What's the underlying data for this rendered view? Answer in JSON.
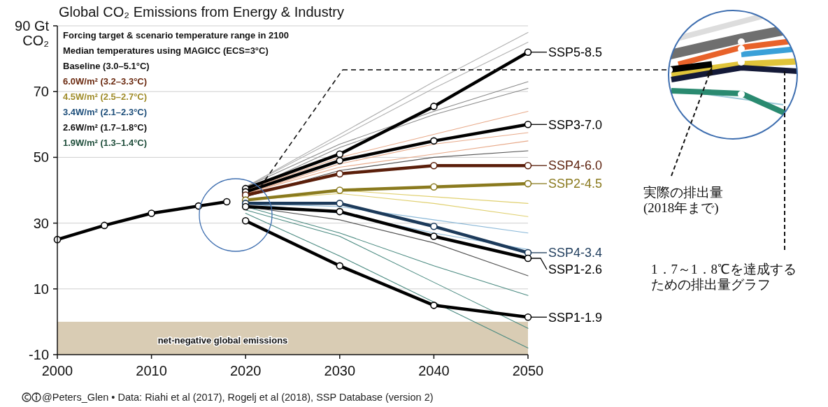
{
  "chart_data": {
    "type": "line",
    "title": "Global CO₂ Emissions from Energy & Industry",
    "legend_title": "Forcing target & scenario temperature range in 2100",
    "subtitle": "Median temperatures using MAGICC (ECS=3°C)",
    "annotations": [
      "Baseline (3.0–5.1°C)",
      "6.0W/m² (3.2–3.3°C)",
      "4.5W/m² (2.5–2.7°C)",
      "3.4W/m² (2.1–2.3°C)",
      "2.6W/m² (1.7–1.8°C)",
      "1.9W/m² (1.3–1.4°C)",
      "実際の排出量\n(2018年まで)",
      "1．7～1．8℃を達成するための排出量グラフ",
      "@Peters_Glen  •  Data: Riahi et al (2017), Rogelj et al (2018), SSP Database (version 2)"
    ],
    "xlim": [
      2000,
      2050
    ],
    "xticks": [
      2000,
      2010,
      2020,
      2030,
      2040,
      2050
    ],
    "ylim": [
      -10,
      90
    ],
    "yticks": [
      -10,
      10,
      30,
      50,
      70,
      {
        "value": 90,
        "label": "90 Gt\nCO₂"
      }
    ],
    "grid": "y",
    "marker": "circle",
    "legend": "right",
    "bands": [
      {
        "axis": "y",
        "from": -10,
        "to": 0,
        "label": "net-negative global emissions",
        "color": "#d9ccb4"
      }
    ],
    "series": [
      {
        "color": "#b0b0b0",
        "marker": "none",
        "x": [
          2020,
          2030,
          2040,
          2050
        ],
        "values": [
          41,
          57,
          73,
          88
        ]
      },
      {
        "color": "#b0b0b0",
        "marker": "none",
        "x": [
          2020,
          2030,
          2040,
          2050
        ],
        "values": [
          41,
          56,
          71,
          85
        ]
      },
      {
        "color": "#8a8a8a",
        "marker": "none",
        "x": [
          2020,
          2030,
          2040,
          2050
        ],
        "values": [
          41,
          54,
          64,
          73
        ]
      },
      {
        "color": "#8a8a8a",
        "marker": "none",
        "x": [
          2020,
          2030,
          2040,
          2050
        ],
        "values": [
          40,
          53,
          63,
          71
        ]
      },
      {
        "color": "#e8aa8a",
        "marker": "none",
        "x": [
          2020,
          2030,
          2040,
          2050
        ],
        "values": [
          40,
          50,
          57,
          64
        ]
      },
      {
        "color": "#e8aa8a",
        "marker": "none",
        "x": [
          2020,
          2030,
          2040,
          2050
        ],
        "values": [
          39,
          48,
          54,
          57.5
        ]
      },
      {
        "color": "#e8aa8a",
        "marker": "none",
        "x": [
          2020,
          2030,
          2040,
          2050
        ],
        "values": [
          39,
          47,
          51,
          55
        ]
      },
      {
        "color": "#555555",
        "marker": "none",
        "x": [
          2020,
          2030,
          2040,
          2050
        ],
        "values": [
          38,
          46,
          50,
          52
        ]
      },
      {
        "color": "#e0d070",
        "marker": "none",
        "x": [
          2020,
          2030,
          2040,
          2050
        ],
        "values": [
          37,
          40,
          38,
          36
        ]
      },
      {
        "color": "#e0d070",
        "marker": "none",
        "x": [
          2020,
          2030,
          2040,
          2050
        ],
        "values": [
          37,
          39,
          36,
          32
        ]
      },
      {
        "color": "#8ab8d8",
        "marker": "none",
        "x": [
          2020,
          2030,
          2040,
          2050
        ],
        "values": [
          36,
          35,
          31,
          27
        ]
      },
      {
        "color": "#8ab8d8",
        "marker": "none",
        "x": [
          2020,
          2030,
          2040,
          2050
        ],
        "values": [
          36,
          33,
          27,
          22
        ]
      },
      {
        "color": "#555555",
        "marker": "none",
        "x": [
          2020,
          2030,
          2040,
          2050
        ],
        "values": [
          35,
          31,
          24,
          14
        ]
      },
      {
        "color": "#4a8a80",
        "marker": "none",
        "x": [
          2020,
          2030,
          2040,
          2050
        ],
        "values": [
          35,
          27,
          17,
          8
        ]
      },
      {
        "color": "#4a8a80",
        "marker": "none",
        "x": [
          2020,
          2030,
          2040,
          2050
        ],
        "values": [
          34,
          26,
          12,
          -2
        ]
      },
      {
        "color": "#4a8a80",
        "marker": "none",
        "x": [
          2020,
          2030,
          2040,
          2050
        ],
        "values": [
          33,
          20,
          6,
          -8
        ]
      },
      {
        "color": "#000000",
        "x": [
          2000,
          2005,
          2010,
          2015,
          2018
        ],
        "values": [
          25,
          29.3,
          33,
          35.2,
          36.5
        ]
      },
      {
        "name": "SSP5-8.5",
        "color": "#000000",
        "x": [
          2020,
          2030,
          2040,
          2050
        ],
        "values": [
          40.5,
          51,
          65.5,
          82
        ]
      },
      {
        "name": "SSP3-7.0",
        "color": "#000000",
        "x": [
          2020,
          2030,
          2040,
          2050
        ],
        "values": [
          39.5,
          49,
          55,
          60
        ]
      },
      {
        "name": "SSP4-6.0",
        "color": "#5a1e0a",
        "x": [
          2020,
          2030,
          2040,
          2050
        ],
        "values": [
          38.5,
          45,
          47.5,
          47.5
        ]
      },
      {
        "name": "SSP2-4.5",
        "color": "#8a7a1e",
        "x": [
          2020,
          2030,
          2040,
          2050
        ],
        "values": [
          37,
          40,
          41,
          42
        ]
      },
      {
        "name": "SSP4-3.4",
        "color": "#1c3a5a",
        "x": [
          2020,
          2030,
          2040,
          2050
        ],
        "values": [
          36,
          36,
          29,
          21
        ]
      },
      {
        "name": "SSP1-2.6",
        "color": "#000000",
        "x": [
          2020,
          2030,
          2040,
          2050
        ],
        "values": [
          35,
          33.5,
          26,
          19.3
        ]
      },
      {
        "name": "SSP1-1.9",
        "color": "#000000",
        "x": [
          2020,
          2030,
          2040,
          2050
        ],
        "values": [
          30.7,
          17,
          5,
          1.4
        ]
      }
    ]
  }
}
